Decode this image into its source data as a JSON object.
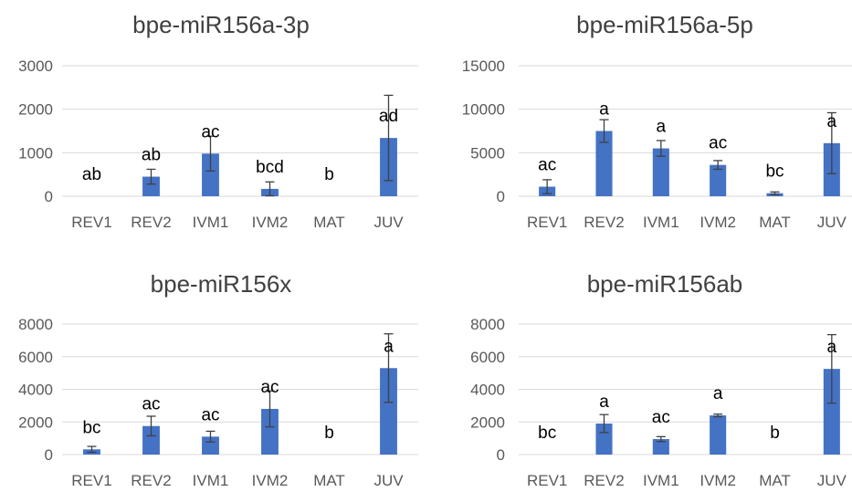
{
  "colors": {
    "bar": "#4472C4",
    "grid": "#D9D9D9",
    "tick_text": "#595959",
    "title_text": "#404040",
    "error_bar": "#404040",
    "label_text": "#000000"
  },
  "chart_data": [
    {
      "type": "bar",
      "title": "bpe-miR156a-3p",
      "categories": [
        "REV1",
        "REV2",
        "IVM1",
        "IVM2",
        "MAT",
        "JUV"
      ],
      "values": [
        0,
        450,
        980,
        170,
        0,
        1340
      ],
      "errors": [
        0,
        170,
        400,
        160,
        0,
        980
      ],
      "labels": [
        "ab",
        "ab",
        "ac",
        "bcd",
        "b",
        "ad"
      ],
      "yticks": [
        "0",
        "1000",
        "2000",
        "3000"
      ],
      "ylim": [
        0,
        3000
      ],
      "grid": true
    },
    {
      "type": "bar",
      "title": "bpe-miR156a-5p",
      "categories": [
        "REV1",
        "REV2",
        "IVM1",
        "IVM2",
        "MAT",
        "JUV"
      ],
      "values": [
        1100,
        7500,
        5500,
        3600,
        350,
        6100
      ],
      "errors": [
        800,
        1300,
        900,
        500,
        150,
        3500
      ],
      "labels": [
        "ac",
        "a",
        "a",
        "ac",
        "bc",
        "a"
      ],
      "yticks": [
        "0",
        "5000",
        "10000",
        "15000"
      ],
      "ylim": [
        0,
        15000
      ],
      "grid": true
    },
    {
      "type": "bar",
      "title": "bpe-miR156x",
      "categories": [
        "REV1",
        "REV2",
        "IVM1",
        "IVM2",
        "MAT",
        "JUV"
      ],
      "values": [
        320,
        1750,
        1100,
        2800,
        0,
        5300
      ],
      "errors": [
        180,
        600,
        330,
        1100,
        0,
        2100
      ],
      "labels": [
        "bc",
        "ac",
        "ac",
        "ac",
        "b",
        "a"
      ],
      "yticks": [
        "0",
        "2000",
        "4000",
        "6000",
        "8000"
      ],
      "ylim": [
        0,
        8000
      ],
      "grid": true
    },
    {
      "type": "bar",
      "title": "bpe-miR156ab",
      "categories": [
        "REV1",
        "REV2",
        "IVM1",
        "IVM2",
        "MAT",
        "JUV"
      ],
      "values": [
        0,
        1900,
        950,
        2400,
        0,
        5250
      ],
      "errors": [
        0,
        550,
        150,
        80,
        0,
        2100
      ],
      "labels": [
        "bc",
        "a",
        "ac",
        "a",
        "b",
        "a"
      ],
      "yticks": [
        "0",
        "2000",
        "4000",
        "6000",
        "8000"
      ],
      "ylim": [
        0,
        8000
      ],
      "grid": true
    }
  ]
}
